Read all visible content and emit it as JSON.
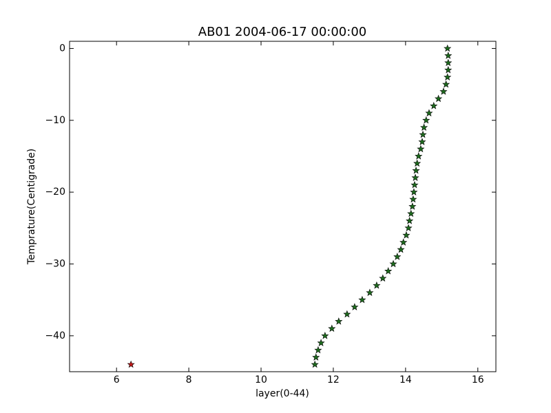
{
  "chart_data": {
    "type": "scatter",
    "title": "AB01 2004-06-17 00:00:00",
    "x_label": "layer(0-44)",
    "y_label": "Temprature(Centigrade)",
    "xlim": [
      4.7,
      16.5
    ],
    "ylim": [
      -45,
      1
    ],
    "xticks": [
      6,
      8,
      10,
      12,
      14,
      16
    ],
    "yticks": [
      0,
      {
        "value": -10,
        "label": "−10"
      },
      {
        "value": -20,
        "label": "−20"
      },
      {
        "value": -30,
        "label": "−30"
      },
      {
        "value": -40,
        "label": "−40"
      }
    ],
    "marker": "star",
    "series": [
      {
        "color": "#1e6b1e",
        "x": [
          15.16,
          15.18,
          15.18,
          15.18,
          15.16,
          15.12,
          15.05,
          14.91,
          14.78,
          14.65,
          14.57,
          14.51,
          14.48,
          14.46,
          14.42,
          14.36,
          14.32,
          14.29,
          14.27,
          14.25,
          14.23,
          14.21,
          14.19,
          14.15,
          14.11,
          14.08,
          14.02,
          13.94,
          13.87,
          13.77,
          13.66,
          13.52,
          13.37,
          13.2,
          13.01,
          12.8,
          12.59,
          12.38,
          12.15,
          11.96,
          11.77,
          11.66,
          11.58,
          11.52,
          11.49
        ],
        "values": [
          0,
          -1,
          -2,
          -3,
          -4,
          -5,
          -6,
          -7,
          -8,
          -9,
          -10,
          -11,
          -12,
          -13,
          -14,
          -15,
          -16,
          -17,
          -18,
          -19,
          -20,
          -21,
          -22,
          -23,
          -24,
          -25,
          -26,
          -27,
          -28,
          -29,
          -30,
          -31,
          -32,
          -33,
          -34,
          -35,
          -36,
          -37,
          -38,
          -39,
          -40,
          -41,
          -42,
          -43,
          -44
        ]
      },
      {
        "color": "#c01818",
        "x": [
          6.4
        ],
        "values": [
          -44
        ]
      }
    ]
  }
}
